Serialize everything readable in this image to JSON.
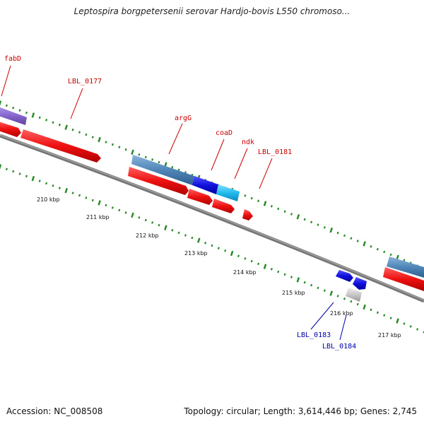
{
  "title": "Leptospira borgpetersenii serovar Hardjo-bovis L550 chromoso...",
  "footer": {
    "accession": "Accession: NC_008508",
    "summary": "Topology: circular; Length: 3,614,446 bp; Genes: 2,745"
  },
  "colors": {
    "backbone": "#7a7a7a",
    "tick": "#2a8a2a",
    "red_gene": "#ee1111",
    "steel_gene": "#4f86b8",
    "blue_gene": "#1111dd",
    "cyan_gene": "#22bbee",
    "purple_gene": "#8866cc",
    "grey_gene": "#c8c8c8",
    "label_red": "#cc0000",
    "label_blue": "#0000aa"
  },
  "kbp_labels": [
    "210 kbp",
    "211 kbp",
    "212 kbp",
    "213 kbp",
    "214 kbp",
    "215 kbp",
    "216 kbp",
    "217 kbp"
  ],
  "gene_labels": {
    "fabD": "fabD",
    "lbl0177": "LBL_0177",
    "argG": "argG",
    "coaD": "coaD",
    "ndk": "ndk",
    "lbl0181": "LBL_0181",
    "lbl0183": "LBL_0183",
    "lbl0184": "LBL_0184"
  }
}
